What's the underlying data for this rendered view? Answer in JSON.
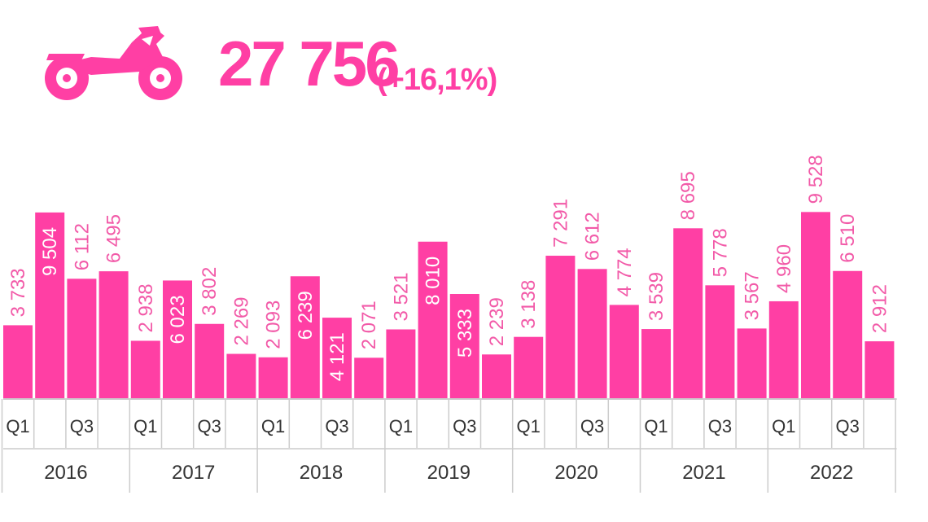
{
  "headline": {
    "value": "27 756",
    "change": "(+16,1%)",
    "icon": "motorcycle-icon"
  },
  "colors": {
    "bar": "#ff3fa4",
    "label_outside": "#f25aa8",
    "label_inside": "#ffffff",
    "axis_text": "#333333",
    "grid": "#cccccc"
  },
  "chart_data": {
    "type": "bar",
    "title": "",
    "xlabel": "",
    "ylabel": "",
    "ylim": [
      0,
      10000
    ],
    "grid": false,
    "legend": "none",
    "years": [
      "2016",
      "2017",
      "2018",
      "2019",
      "2020",
      "2021",
      "2022"
    ],
    "quarter_ticks": [
      "Q1",
      "",
      "Q3",
      ""
    ],
    "categories": [
      "2016 Q1",
      "2016 Q2",
      "2016 Q3",
      "2016 Q4",
      "2017 Q1",
      "2017 Q2",
      "2017 Q3",
      "2017 Q4",
      "2018 Q1",
      "2018 Q2",
      "2018 Q3",
      "2018 Q4",
      "2019 Q1",
      "2019 Q2",
      "2019 Q3",
      "2019 Q4",
      "2020 Q1",
      "2020 Q2",
      "2020 Q3",
      "2020 Q4",
      "2021 Q1",
      "2021 Q2",
      "2021 Q3",
      "2021 Q4",
      "2022 Q1",
      "2022 Q2",
      "2022 Q3",
      "2022 Q4"
    ],
    "values": [
      3733,
      9504,
      6112,
      6495,
      2938,
      6023,
      3802,
      2269,
      2093,
      6239,
      4121,
      2071,
      3521,
      8010,
      5333,
      2239,
      3138,
      7291,
      6612,
      4774,
      3539,
      8695,
      5778,
      3567,
      4960,
      9528,
      6510,
      2912
    ],
    "labels": [
      "3 733",
      "9 504",
      "6 112",
      "6 495",
      "2 938",
      "6 023",
      "3 802",
      "2 269",
      "2 093",
      "6 239",
      "4 121",
      "2 071",
      "3 521",
      "8 010",
      "5 333",
      "2 239",
      "3 138",
      "7 291",
      "6 612",
      "4 774",
      "3 539",
      "8 695",
      "5 778",
      "3 567",
      "4 960",
      "9 528",
      "6 510",
      "2 912"
    ],
    "label_inside": [
      false,
      true,
      false,
      false,
      false,
      true,
      false,
      false,
      false,
      true,
      true,
      false,
      false,
      true,
      true,
      false,
      false,
      false,
      false,
      false,
      false,
      false,
      false,
      false,
      false,
      false,
      false,
      false
    ]
  }
}
